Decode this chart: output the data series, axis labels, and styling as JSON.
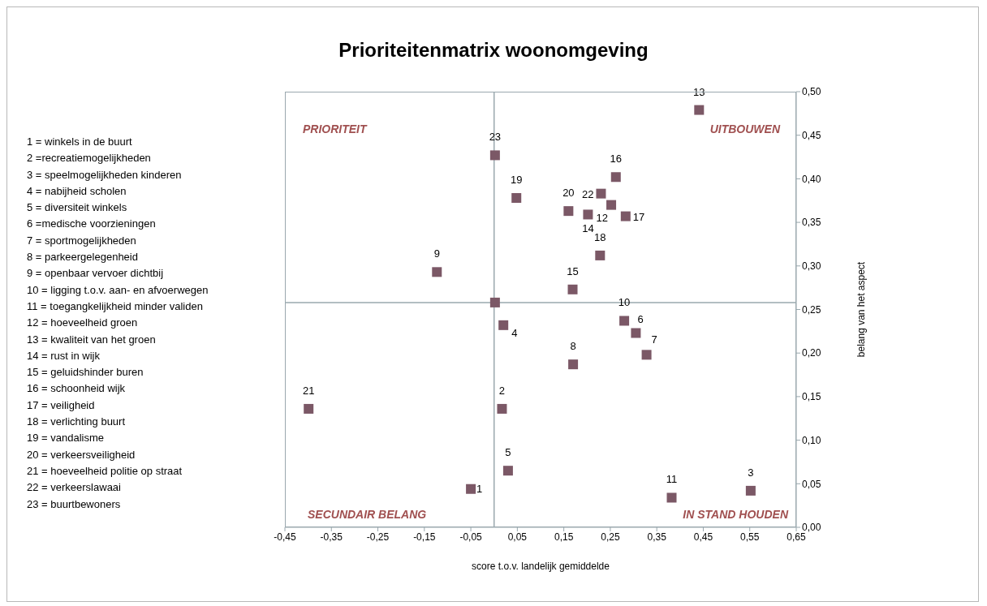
{
  "chart_data": {
    "type": "scatter",
    "title": "Prioriteitenmatrix woonomgeving",
    "xlabel": "score t.o.v. landelijk gemiddelde",
    "ylabel": "belang van het aspect",
    "series": [
      {
        "name": "1",
        "color": "#7b5866",
        "x": [
          -0.05
        ],
        "values": [
          0.044
        ]
      },
      {
        "name": "2",
        "color": "#7b5866",
        "x": [
          0.017
        ],
        "values": [
          0.136
        ]
      },
      {
        "name": "3",
        "color": "#7b5866",
        "x": [
          0.552
        ],
        "values": [
          0.042
        ]
      },
      {
        "name": "4",
        "color": "#7b5866",
        "x": [
          0.02
        ],
        "values": [
          0.232
        ]
      },
      {
        "name": "5",
        "color": "#7b5866",
        "x": [
          0.03
        ],
        "values": [
          0.065
        ]
      },
      {
        "name": "6",
        "color": "#7b5866",
        "x": [
          0.305
        ],
        "values": [
          0.223
        ]
      },
      {
        "name": "7",
        "color": "#7b5866",
        "x": [
          0.328
        ],
        "values": [
          0.198
        ]
      },
      {
        "name": "8",
        "color": "#7b5866",
        "x": [
          0.17
        ],
        "values": [
          0.187
        ]
      },
      {
        "name": "9",
        "color": "#7b5866",
        "x": [
          -0.123
        ],
        "values": [
          0.293
        ]
      },
      {
        "name": "10",
        "color": "#7b5866",
        "x": [
          0.28
        ],
        "values": [
          0.237
        ]
      },
      {
        "name": "11",
        "color": "#7b5866",
        "x": [
          0.382
        ],
        "values": [
          0.034
        ]
      },
      {
        "name": "12",
        "color": "#7b5866",
        "x": [
          0.252
        ],
        "values": [
          0.37
        ]
      },
      {
        "name": "13",
        "color": "#7b5866",
        "x": [
          0.441
        ],
        "values": [
          0.479
        ]
      },
      {
        "name": "14",
        "color": "#7b5866",
        "x": [
          0.202
        ],
        "values": [
          0.359
        ]
      },
      {
        "name": "15",
        "color": "#7b5866",
        "x": [
          0.169
        ],
        "values": [
          0.273
        ]
      },
      {
        "name": "16",
        "color": "#7b5866",
        "x": [
          0.262
        ],
        "values": [
          0.402
        ]
      },
      {
        "name": "17",
        "color": "#7b5866",
        "x": [
          0.283
        ],
        "values": [
          0.357
        ]
      },
      {
        "name": "18",
        "color": "#7b5866",
        "x": [
          0.228
        ],
        "values": [
          0.312
        ]
      },
      {
        "name": "19",
        "color": "#7b5866",
        "x": [
          0.048
        ],
        "values": [
          0.378
        ]
      },
      {
        "name": "20",
        "color": "#7b5866",
        "x": [
          0.16
        ],
        "values": [
          0.363
        ]
      },
      {
        "name": "21",
        "color": "#7b5866",
        "x": [
          -0.399
        ],
        "values": [
          0.136
        ]
      },
      {
        "name": "22",
        "color": "#7b5866",
        "x": [
          0.23
        ],
        "values": [
          0.383
        ]
      },
      {
        "name": "23",
        "color": "#7b5866",
        "x": [
          0.002
        ],
        "values": [
          0.427
        ]
      },
      {
        "color": "#7b5866",
        "x": [
          0.002
        ],
        "values": [
          0.258
        ]
      }
    ],
    "marker": "square",
    "xlim": [
      -0.45,
      0.65
    ],
    "xticks": [
      {
        "value": -0.45,
        "label": "-0,45"
      },
      {
        "value": -0.35,
        "label": "-0,35"
      },
      {
        "value": -0.25,
        "label": "-0,25"
      },
      {
        "value": -0.15,
        "label": "-0,15"
      },
      {
        "value": -0.05,
        "label": "-0,05"
      },
      {
        "value": 0.05,
        "label": "0,05"
      },
      {
        "value": 0.15,
        "label": "0,15"
      },
      {
        "value": 0.25,
        "label": "0,25"
      },
      {
        "value": 0.35,
        "label": "0,35"
      },
      {
        "value": 0.45,
        "label": "0,45"
      },
      {
        "value": 0.55,
        "label": "0,55"
      },
      {
        "value": 0.65,
        "label": "0,65"
      }
    ],
    "ylim": [
      0,
      0.5
    ],
    "yticks": [
      {
        "value": 0,
        "label": "0,00"
      },
      {
        "value": 0.05,
        "label": "0,05"
      },
      {
        "value": 0.1,
        "label": "0,10"
      },
      {
        "value": 0.15,
        "label": "0,15"
      },
      {
        "value": 0.2,
        "label": "0,20"
      },
      {
        "value": 0.25,
        "label": "0,25"
      },
      {
        "value": 0.3,
        "label": "0,30"
      },
      {
        "value": 0.35,
        "label": "0,35"
      },
      {
        "value": 0.4,
        "label": "0,40"
      },
      {
        "value": 0.45,
        "label": "0,45"
      },
      {
        "value": 0.5,
        "label": "0,50"
      }
    ],
    "ref_lines": [
      {
        "axis": "x",
        "value": 0,
        "color": "#9aa8ae"
      },
      {
        "axis": "y",
        "value": 0.258,
        "color": "#9aa8ae"
      }
    ],
    "annotations": [
      "PRIORITEIT",
      "UITBOUWEN",
      "SECUNDAIR BELANG",
      "IN STAND HOUDEN",
      "1 = winkels in de buurt",
      "2 =recreatiemogelijkheden",
      "3 = speelmogelijkheden kinderen",
      "4 = nabijheid scholen",
      "5 = diversiteit winkels",
      "6 =medische voorzieningen",
      "7 = sportmogelijkheden",
      "8 = parkeergelegenheid",
      "9 = openbaar vervoer dichtbij",
      "10 = ligging t.o.v. aan- en afvoerwegen",
      "11 = toegangkelijkheid minder validen",
      "12 = hoeveelheid groen",
      "13 = kwaliteit van het groen",
      "14 = rust in wijk",
      "15 = geluidshinder buren",
      "16 = schoonheid wijk",
      "17 = veiligheid",
      "18 = verlichting buurt",
      "19 = vandalisme",
      "20 = verkeersveiligheid",
      "21 = hoeveelheid politie op straat",
      "22 = verkeerslawaai",
      "23 = buurtbewoners"
    ]
  }
}
